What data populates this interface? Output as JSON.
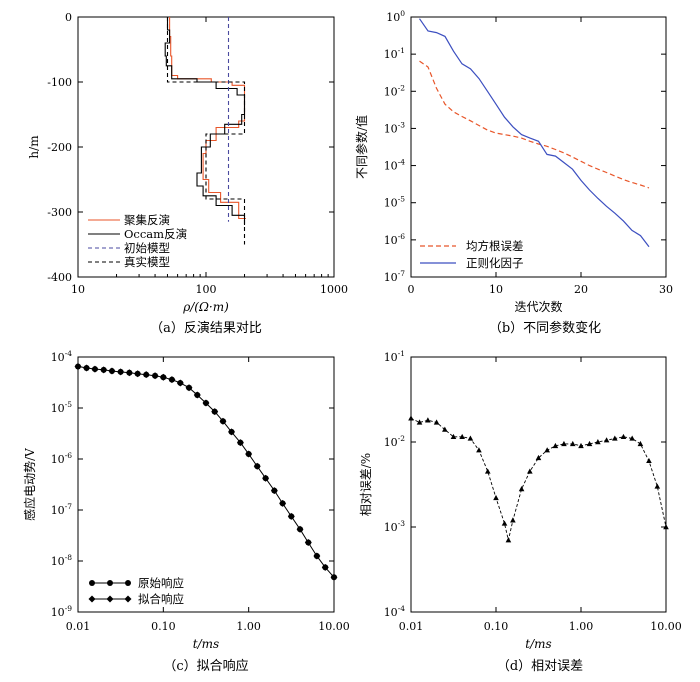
{
  "chart_data": [
    {
      "type": "line",
      "panel": "a",
      "caption": "（a）反演结果对比",
      "xlabel": "ρ/(Ω·m)",
      "ylabel": "h/m",
      "xscale": "log",
      "xlim": [
        10,
        1000
      ],
      "ylim": [
        -400,
        0
      ],
      "xticks": [
        "10",
        "100",
        "1000"
      ],
      "yticks": [
        "0",
        "-100",
        "-200",
        "-300",
        "-400"
      ],
      "legend_position": "bottom-left",
      "series": [
        {
          "name": "聚集反演",
          "color": "#e8562a",
          "style": "solid",
          "points": [
            [
              52,
              0
            ],
            [
              52,
              -30
            ],
            [
              53,
              -30
            ],
            [
              53,
              -60
            ],
            [
              54,
              -60
            ],
            [
              54,
              -90
            ],
            [
              60,
              -90
            ],
            [
              60,
              -95
            ],
            [
              110,
              -95
            ],
            [
              110,
              -100
            ],
            [
              160,
              -100
            ],
            [
              160,
              -105
            ],
            [
              200,
              -105
            ],
            [
              200,
              -160
            ],
            [
              180,
              -160
            ],
            [
              180,
              -170
            ],
            [
              120,
              -170
            ],
            [
              120,
              -190
            ],
            [
              100,
              -190
            ],
            [
              100,
              -210
            ],
            [
              95,
              -210
            ],
            [
              95,
              -250
            ],
            [
              105,
              -250
            ],
            [
              105,
              -270
            ],
            [
              130,
              -270
            ],
            [
              130,
              -285
            ],
            [
              180,
              -285
            ],
            [
              180,
              -310
            ],
            [
              205,
              -310
            ]
          ]
        },
        {
          "name": "Occam反演",
          "color": "#000000",
          "style": "solid",
          "points": [
            [
              50,
              0
            ],
            [
              50,
              -20
            ],
            [
              52,
              -20
            ],
            [
              52,
              -40
            ],
            [
              48,
              -40
            ],
            [
              48,
              -60
            ],
            [
              49,
              -60
            ],
            [
              49,
              -75
            ],
            [
              54,
              -75
            ],
            [
              54,
              -95
            ],
            [
              85,
              -95
            ],
            [
              85,
              -100
            ],
            [
              120,
              -100
            ],
            [
              120,
              -110
            ],
            [
              175,
              -110
            ],
            [
              175,
              -120
            ],
            [
              200,
              -120
            ],
            [
              200,
              -150
            ],
            [
              190,
              -150
            ],
            [
              190,
              -165
            ],
            [
              140,
              -165
            ],
            [
              140,
              -180
            ],
            [
              108,
              -180
            ],
            [
              108,
              -200
            ],
            [
              92,
              -200
            ],
            [
              92,
              -240
            ],
            [
              85,
              -240
            ],
            [
              85,
              -260
            ],
            [
              95,
              -260
            ],
            [
              95,
              -275
            ],
            [
              120,
              -275
            ],
            [
              120,
              -290
            ],
            [
              160,
              -290
            ],
            [
              160,
              -305
            ],
            [
              200,
              -305
            ],
            [
              200,
              -320
            ]
          ]
        },
        {
          "name": "初始模型",
          "color": "#4a4aa0",
          "style": "dashed",
          "points": [
            [
              150,
              0
            ],
            [
              150,
              -315
            ]
          ]
        },
        {
          "name": "真实模型",
          "color": "#000000",
          "style": "dashed",
          "points": [
            [
              50,
              0
            ],
            [
              50,
              -100
            ],
            [
              200,
              -100
            ],
            [
              200,
              -180
            ],
            [
              100,
              -180
            ],
            [
              100,
              -280
            ],
            [
              200,
              -280
            ],
            [
              200,
              -350
            ]
          ]
        }
      ]
    },
    {
      "type": "line",
      "panel": "b",
      "caption": "（b）不同参数变化",
      "xlabel": "迭代次数",
      "ylabel": "不同参数/值",
      "yscale": "log",
      "xlim": [
        0,
        30
      ],
      "ylim": [
        1e-07,
        1
      ],
      "xticks": [
        "0",
        "10",
        "20",
        "30"
      ],
      "yticks": [
        {
          "base": "10",
          "exp": "0"
        },
        {
          "base": "10",
          "exp": "-1"
        },
        {
          "base": "10",
          "exp": "-2"
        },
        {
          "base": "10",
          "exp": "-3"
        },
        {
          "base": "10",
          "exp": "-4"
        },
        {
          "base": "10",
          "exp": "-5"
        },
        {
          "base": "10",
          "exp": "-6"
        },
        {
          "base": "10",
          "exp": "-7"
        }
      ],
      "legend_position": "bottom-left",
      "series": [
        {
          "name": "均方根误差",
          "color": "#e8562a",
          "style": "dashed",
          "points": [
            [
              1,
              0.065
            ],
            [
              2,
              0.045
            ],
            [
              3,
              0.012
            ],
            [
              4,
              0.0045
            ],
            [
              5,
              0.0028
            ],
            [
              6,
              0.0021
            ],
            [
              7,
              0.0016
            ],
            [
              8,
              0.0012
            ],
            [
              9,
              0.0009
            ],
            [
              10,
              0.00075
            ],
            [
              11,
              0.00068
            ],
            [
              12,
              0.00062
            ],
            [
              13,
              0.00055
            ],
            [
              14,
              0.00045
            ],
            [
              15,
              0.00038
            ],
            [
              16,
              0.00033
            ],
            [
              17,
              0.00027
            ],
            [
              18,
              0.00022
            ],
            [
              19,
              0.00017
            ],
            [
              20,
              0.00013
            ],
            [
              21,
              0.0001
            ],
            [
              22,
              8e-05
            ],
            [
              23,
              6.5e-05
            ],
            [
              24,
              5.2e-05
            ],
            [
              25,
              4.2e-05
            ],
            [
              26,
              3.5e-05
            ],
            [
              27,
              3e-05
            ],
            [
              28,
              2.5e-05
            ]
          ]
        },
        {
          "name": "正则化因子",
          "color": "#3c4fc0",
          "style": "solid",
          "points": [
            [
              1,
              0.9
            ],
            [
              2,
              0.42
            ],
            [
              3,
              0.38
            ],
            [
              4,
              0.3
            ],
            [
              5,
              0.12
            ],
            [
              6,
              0.055
            ],
            [
              7,
              0.04
            ],
            [
              8,
              0.022
            ],
            [
              9,
              0.01
            ],
            [
              10,
              0.0045
            ],
            [
              11,
              0.002
            ],
            [
              12,
              0.0011
            ],
            [
              13,
              0.00068
            ],
            [
              14,
              0.00055
            ],
            [
              15,
              0.00045
            ],
            [
              16,
              0.0002
            ],
            [
              17,
              0.00018
            ],
            [
              18,
              0.00012
            ],
            [
              19,
              8e-05
            ],
            [
              20,
              4e-05
            ],
            [
              21,
              2.2e-05
            ],
            [
              22,
              1.3e-05
            ],
            [
              23,
              8e-06
            ],
            [
              24,
              5.2e-06
            ],
            [
              25,
              3.2e-06
            ],
            [
              26,
              1.8e-06
            ],
            [
              27,
              1.3e-06
            ],
            [
              28,
              6.5e-07
            ]
          ]
        }
      ]
    },
    {
      "type": "line",
      "panel": "c",
      "caption": "（c）拟合响应",
      "xlabel": "t/ms",
      "ylabel": "感应电动势/V",
      "xscale": "log",
      "yscale": "log",
      "xlim": [
        0.01,
        10
      ],
      "ylim": [
        1e-09,
        0.0001
      ],
      "xticks": [
        "0.01",
        "0.10",
        "1.00",
        "10.00"
      ],
      "yticks": [
        {
          "base": "10",
          "exp": "-4"
        },
        {
          "base": "10",
          "exp": "-5"
        },
        {
          "base": "10",
          "exp": "-6"
        },
        {
          "base": "10",
          "exp": "-7"
        },
        {
          "base": "10",
          "exp": "-8"
        },
        {
          "base": "10",
          "exp": "-9"
        }
      ],
      "legend_position": "bottom-left",
      "series": [
        {
          "name": "原始响应",
          "marker": "circle",
          "color": "#000000",
          "points": [
            [
              0.01,
              6.5e-05
            ],
            [
              0.0126,
              6.1e-05
            ],
            [
              0.0158,
              5.8e-05
            ],
            [
              0.02,
              5.6e-05
            ],
            [
              0.025,
              5.3e-05
            ],
            [
              0.0316,
              5.1e-05
            ],
            [
              0.04,
              4.9e-05
            ],
            [
              0.05,
              4.7e-05
            ],
            [
              0.063,
              4.5e-05
            ],
            [
              0.08,
              4.3e-05
            ],
            [
              0.1,
              4e-05
            ],
            [
              0.126,
              3.6e-05
            ],
            [
              0.158,
              3.1e-05
            ],
            [
              0.2,
              2.5e-05
            ],
            [
              0.25,
              1.8e-05
            ],
            [
              0.316,
              1.25e-05
            ],
            [
              0.4,
              8.5e-06
            ],
            [
              0.5,
              5.5e-06
            ],
            [
              0.63,
              3.4e-06
            ],
            [
              0.8,
              2.1e-06
            ],
            [
              1.0,
              1.25e-06
            ],
            [
              1.26,
              7.2e-07
            ],
            [
              1.58,
              4.2e-07
            ],
            [
              2.0,
              2.4e-07
            ],
            [
              2.5,
              1.35e-07
            ],
            [
              3.16,
              7.5e-08
            ],
            [
              4.0,
              4.2e-08
            ],
            [
              5.0,
              2.3e-08
            ],
            [
              6.3,
              1.25e-08
            ],
            [
              7.9,
              7.5e-09
            ],
            [
              10.0,
              4.8e-09
            ]
          ]
        },
        {
          "name": "拟合响应",
          "marker": "diamond",
          "color": "#000000",
          "points": [
            [
              0.01,
              6.5e-05
            ],
            [
              0.0126,
              6.1e-05
            ],
            [
              0.0158,
              5.8e-05
            ],
            [
              0.02,
              5.6e-05
            ],
            [
              0.025,
              5.3e-05
            ],
            [
              0.0316,
              5.1e-05
            ],
            [
              0.04,
              4.9e-05
            ],
            [
              0.05,
              4.7e-05
            ],
            [
              0.063,
              4.5e-05
            ],
            [
              0.08,
              4.3e-05
            ],
            [
              0.1,
              4e-05
            ],
            [
              0.126,
              3.6e-05
            ],
            [
              0.158,
              3.1e-05
            ],
            [
              0.2,
              2.5e-05
            ],
            [
              0.25,
              1.8e-05
            ],
            [
              0.316,
              1.25e-05
            ],
            [
              0.4,
              8.5e-06
            ],
            [
              0.5,
              5.5e-06
            ],
            [
              0.63,
              3.4e-06
            ],
            [
              0.8,
              2.1e-06
            ],
            [
              1.0,
              1.25e-06
            ],
            [
              1.26,
              7.2e-07
            ],
            [
              1.58,
              4.2e-07
            ],
            [
              2.0,
              2.4e-07
            ],
            [
              2.5,
              1.35e-07
            ],
            [
              3.16,
              7.5e-08
            ],
            [
              4.0,
              4.2e-08
            ],
            [
              5.0,
              2.3e-08
            ],
            [
              6.3,
              1.25e-08
            ],
            [
              7.9,
              7.5e-09
            ],
            [
              10.0,
              4.8e-09
            ]
          ]
        }
      ]
    },
    {
      "type": "line",
      "panel": "d",
      "caption": "（d）相对误差",
      "xlabel": "t/ms",
      "ylabel": "相对误差/%",
      "xscale": "log",
      "yscale": "log",
      "xlim": [
        0.01,
        10
      ],
      "ylim": [
        0.0001,
        0.1
      ],
      "xticks": [
        "0.01",
        "0.10",
        "1.00",
        "10.00"
      ],
      "yticks": [
        {
          "base": "10",
          "exp": "-1"
        },
        {
          "base": "10",
          "exp": "-2"
        },
        {
          "base": "10",
          "exp": "-3"
        },
        {
          "base": "10",
          "exp": "-4"
        }
      ],
      "series": [
        {
          "name": "",
          "marker": "triangle",
          "color": "#000000",
          "style": "dashed",
          "points": [
            [
              0.01,
              0.019
            ],
            [
              0.0126,
              0.017
            ],
            [
              0.0158,
              0.018
            ],
            [
              0.02,
              0.017
            ],
            [
              0.025,
              0.014
            ],
            [
              0.0316,
              0.0115
            ],
            [
              0.04,
              0.0115
            ],
            [
              0.05,
              0.011
            ],
            [
              0.063,
              0.008
            ],
            [
              0.08,
              0.0045
            ],
            [
              0.1,
              0.0022
            ],
            [
              0.126,
              0.0011
            ],
            [
              0.14,
              0.0007
            ],
            [
              0.158,
              0.0012
            ],
            [
              0.2,
              0.0028
            ],
            [
              0.25,
              0.0045
            ],
            [
              0.316,
              0.0065
            ],
            [
              0.4,
              0.008
            ],
            [
              0.5,
              0.009
            ],
            [
              0.63,
              0.0095
            ],
            [
              0.8,
              0.0095
            ],
            [
              1.0,
              0.009
            ],
            [
              1.26,
              0.0095
            ],
            [
              1.58,
              0.01
            ],
            [
              2.0,
              0.0105
            ],
            [
              2.5,
              0.011
            ],
            [
              3.16,
              0.0115
            ],
            [
              4.0,
              0.011
            ],
            [
              5.0,
              0.0095
            ],
            [
              6.3,
              0.006
            ],
            [
              7.9,
              0.003
            ],
            [
              10.0,
              0.001
            ]
          ]
        }
      ]
    }
  ]
}
